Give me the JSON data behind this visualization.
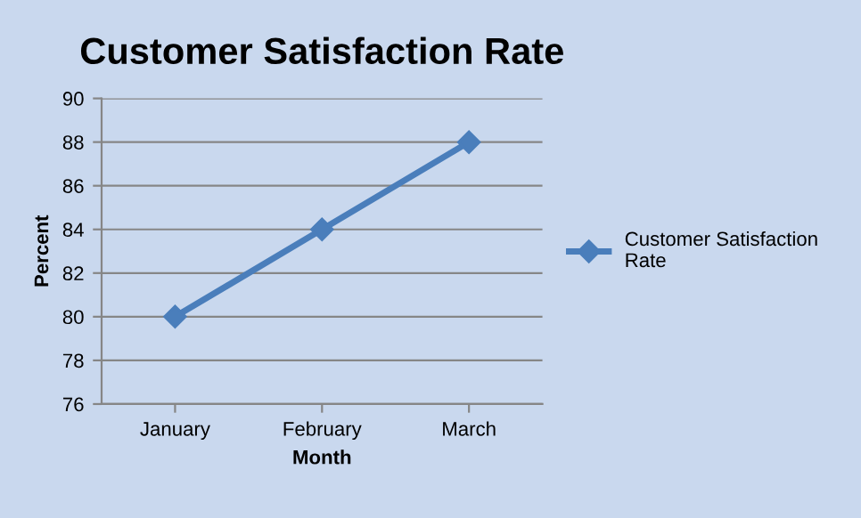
{
  "chart_data": {
    "type": "line",
    "title": "Customer Satisfaction Rate",
    "xlabel": "Month",
    "ylabel": "Percent",
    "categories": [
      "January",
      "February",
      "March"
    ],
    "series": [
      {
        "name": "Customer Satisfaction Rate",
        "color": "#4a7ebb",
        "values": [
          80,
          84,
          88
        ]
      }
    ],
    "ylim": [
      76,
      90
    ],
    "yticks": [
      76,
      78,
      80,
      82,
      84,
      86,
      88,
      90
    ],
    "grid": "y",
    "legend": "right",
    "marker": "diamond",
    "line_style": "solid"
  }
}
